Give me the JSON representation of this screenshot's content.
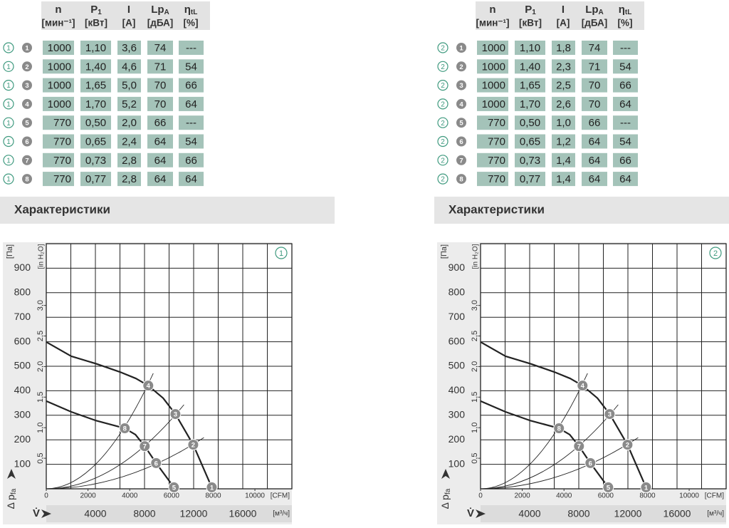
{
  "panels": [
    {
      "table": {
        "columns": [
          {
            "name": "n",
            "unit": "[мин⁻¹]"
          },
          {
            "name": "P",
            "sub": "1",
            "unit": "[кВт]"
          },
          {
            "name": "I",
            "unit": "[A]"
          },
          {
            "name": "Lp",
            "sub": "A",
            "unit": "[дБА]"
          },
          {
            "name": "η",
            "sub": "tL",
            "unit": "[%]"
          }
        ],
        "rows": [
          {
            "curve": "1",
            "point": "1",
            "cells": [
              "1000",
              "1,10",
              "3,6",
              "74",
              "---"
            ]
          },
          {
            "curve": "1",
            "point": "2",
            "cells": [
              "1000",
              "1,40",
              "4,6",
              "71",
              "54"
            ]
          },
          {
            "curve": "1",
            "point": "3",
            "cells": [
              "1000",
              "1,65",
              "5,0",
              "70",
              "66"
            ]
          },
          {
            "curve": "1",
            "point": "4",
            "cells": [
              "1000",
              "1,70",
              "5,2",
              "70",
              "64"
            ]
          },
          {
            "curve": "1",
            "point": "5",
            "cells": [
              "770",
              "0,50",
              "2,0",
              "66",
              "---"
            ]
          },
          {
            "curve": "1",
            "point": "6",
            "cells": [
              "770",
              "0,65",
              "2,4",
              "64",
              "54"
            ]
          },
          {
            "curve": "1",
            "point": "7",
            "cells": [
              "770",
              "0,73",
              "2,8",
              "64",
              "66"
            ]
          },
          {
            "curve": "1",
            "point": "8",
            "cells": [
              "770",
              "0,77",
              "2,8",
              "64",
              "64"
            ]
          }
        ]
      },
      "section_title": "Характеристики",
      "chart": {
        "type": "line",
        "curve_label": "1",
        "y_label": "Δ p",
        "y_label_sub": "fa",
        "y_unit": "[Па]",
        "y2_unit": "[in H₂O]",
        "x_label": "V̇",
        "x_unit": "[CFM]",
        "x2_unit": "[м³/ч]",
        "xlim": [
          0,
          11772
        ],
        "xticks": [
          0,
          2000,
          4000,
          6000,
          8000,
          10000
        ],
        "x2lim": [
          0,
          20000
        ],
        "x2ticks": [
          4000,
          8000,
          12000,
          16000
        ],
        "x2grid": [
          2000,
          4000,
          6000,
          8000,
          10000,
          12000,
          14000,
          16000,
          18000
        ],
        "ylim": [
          0,
          1000
        ],
        "yticks": [
          100,
          200,
          300,
          400,
          500,
          600,
          700,
          800,
          900
        ],
        "y2lim": [
          0,
          4.01
        ],
        "y2ticks": [
          {
            "value": 0.5,
            "label": "0,5"
          },
          {
            "value": 1,
            "label": "1,0"
          },
          {
            "value": 1.5,
            "label": "1,5"
          },
          {
            "value": 2,
            "label": "2,0"
          },
          {
            "value": 2.5,
            "label": "2,5"
          },
          {
            "value": 3,
            "label": "3,0"
          }
        ],
        "fan_curves": [
          {
            "x": [
              0,
              1197,
              2400,
              3521,
              4300,
              4889,
              5600,
              6188,
              7043,
              7932
            ],
            "y": [
              599,
              541,
              510,
              477,
              450,
              421,
              370,
              305,
              180,
              6
            ]
          },
          {
            "x": [
              0,
              1197,
              2359,
              3761,
              4274,
              4718,
              5265,
              6120
            ],
            "y": [
              358,
              314,
              279,
              247,
              221,
              174,
              105,
              6
            ]
          }
        ],
        "system_lines": [
          {
            "x": [
              0,
              5128
            ],
            "y": [
              0,
              471
            ]
          },
          {
            "x": [
              0,
              6598
            ],
            "y": [
              0,
              343
            ]
          },
          {
            "x": [
              0,
              7555
            ],
            "y": [
              0,
              209
            ]
          }
        ],
        "points": {
          "labels": [
            "1",
            "2",
            "3",
            "4",
            "5",
            "6",
            "7",
            "8"
          ],
          "x": [
            7932,
            7043,
            6188,
            4889,
            6120,
            5265,
            4718,
            3761
          ],
          "y": [
            6,
            180,
            305,
            421,
            6,
            105,
            174,
            247
          ]
        }
      }
    },
    {
      "table": {
        "columns": [
          {
            "name": "n",
            "unit": "[мин⁻¹]"
          },
          {
            "name": "P",
            "sub": "1",
            "unit": "[кВт]"
          },
          {
            "name": "I",
            "unit": "[A]"
          },
          {
            "name": "Lp",
            "sub": "A",
            "unit": "[дБА]"
          },
          {
            "name": "η",
            "sub": "tL",
            "unit": "[%]"
          }
        ],
        "rows": [
          {
            "curve": "2",
            "point": "1",
            "cells": [
              "1000",
              "1,10",
              "1,8",
              "74",
              "---"
            ]
          },
          {
            "curve": "2",
            "point": "2",
            "cells": [
              "1000",
              "1,40",
              "2,3",
              "71",
              "54"
            ]
          },
          {
            "curve": "2",
            "point": "3",
            "cells": [
              "1000",
              "1,65",
              "2,5",
              "70",
              "66"
            ]
          },
          {
            "curve": "2",
            "point": "4",
            "cells": [
              "1000",
              "1,70",
              "2,6",
              "70",
              "64"
            ]
          },
          {
            "curve": "2",
            "point": "5",
            "cells": [
              "770",
              "0,50",
              "1,0",
              "66",
              "---"
            ]
          },
          {
            "curve": "2",
            "point": "6",
            "cells": [
              "770",
              "0,65",
              "1,2",
              "64",
              "54"
            ]
          },
          {
            "curve": "2",
            "point": "7",
            "cells": [
              "770",
              "0,73",
              "1,4",
              "64",
              "66"
            ]
          },
          {
            "curve": "2",
            "point": "8",
            "cells": [
              "770",
              "0,77",
              "1,4",
              "64",
              "64"
            ]
          }
        ]
      },
      "section_title": "Характеристики",
      "chart": {
        "type": "line",
        "curve_label": "2",
        "y_label": "Δ p",
        "y_label_sub": "fa",
        "y_unit": "[Па]",
        "y2_unit": "[in H₂O]",
        "x_label": "V̇",
        "x_unit": "[CFM]",
        "x2_unit": "[м³/ч]",
        "xlim": [
          0,
          11772
        ],
        "xticks": [
          0,
          2000,
          4000,
          6000,
          8000,
          10000
        ],
        "x2lim": [
          0,
          20000
        ],
        "x2ticks": [
          4000,
          8000,
          12000,
          16000
        ],
        "x2grid": [
          2000,
          4000,
          6000,
          8000,
          10000,
          12000,
          14000,
          16000,
          18000
        ],
        "ylim": [
          0,
          1000
        ],
        "yticks": [
          100,
          200,
          300,
          400,
          500,
          600,
          700,
          800,
          900
        ],
        "y2lim": [
          0,
          4.01
        ],
        "y2ticks": [
          {
            "value": 0.5,
            "label": "0,5"
          },
          {
            "value": 1,
            "label": "1,0"
          },
          {
            "value": 1.5,
            "label": "1,5"
          },
          {
            "value": 2,
            "label": "2,0"
          },
          {
            "value": 2.5,
            "label": "2,5"
          },
          {
            "value": 3,
            "label": "3,0"
          }
        ],
        "fan_curves": [
          {
            "x": [
              0,
              1197,
              2400,
              3521,
              4300,
              4889,
              5600,
              6188,
              7043,
              7932
            ],
            "y": [
              599,
              541,
              510,
              477,
              450,
              421,
              370,
              305,
              180,
              6
            ]
          },
          {
            "x": [
              0,
              1197,
              2359,
              3761,
              4274,
              4718,
              5265,
              6120
            ],
            "y": [
              358,
              314,
              279,
              247,
              221,
              174,
              105,
              6
            ]
          }
        ],
        "system_lines": [
          {
            "x": [
              0,
              5128
            ],
            "y": [
              0,
              471
            ]
          },
          {
            "x": [
              0,
              6598
            ],
            "y": [
              0,
              343
            ]
          },
          {
            "x": [
              0,
              7555
            ],
            "y": [
              0,
              209
            ]
          }
        ],
        "points": {
          "labels": [
            "1",
            "2",
            "3",
            "4",
            "5",
            "6",
            "7",
            "8"
          ],
          "x": [
            7932,
            7043,
            6188,
            4889,
            6120,
            5265,
            4718,
            3761
          ],
          "y": [
            6,
            180,
            305,
            421,
            6,
            105,
            174,
            247
          ]
        }
      }
    }
  ]
}
